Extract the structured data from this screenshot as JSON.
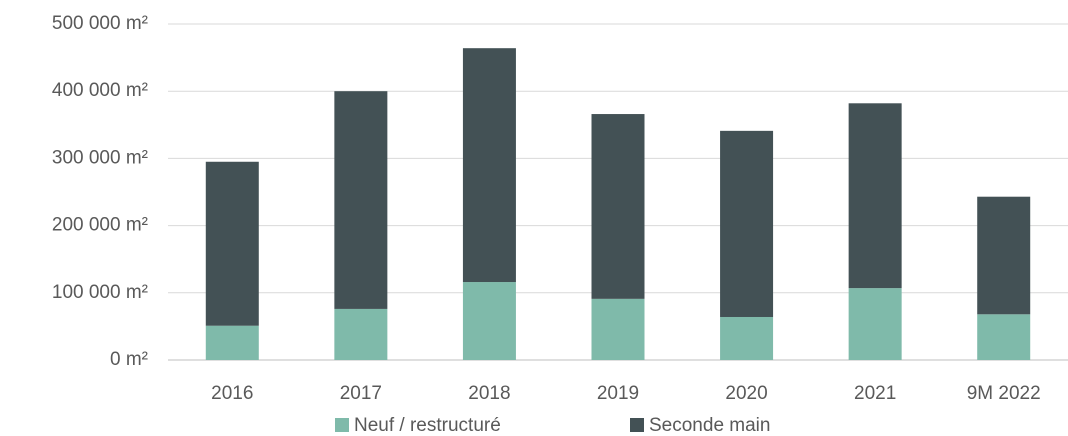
{
  "chart_data": {
    "type": "stacked_bar",
    "categories": [
      "2016",
      "2017",
      "2018",
      "2019",
      "2020",
      "2021",
      "9M 2022"
    ],
    "series": [
      {
        "name": "Neuf / restructuré",
        "color": "#7fbaaa",
        "values": [
          51000,
          76000,
          116000,
          91000,
          64000,
          107000,
          68000
        ]
      },
      {
        "name": "Seconde main",
        "color": "#435155",
        "values": [
          244000,
          324000,
          348000,
          275000,
          277000,
          275000,
          175000
        ]
      }
    ],
    "ylim": [
      0,
      500000
    ],
    "yticks": [
      {
        "value": 0,
        "label": "0 m²"
      },
      {
        "value": 100000,
        "label": "100 000 m²"
      },
      {
        "value": 200000,
        "label": "200 000 m²"
      },
      {
        "value": 300000,
        "label": "300 000 m²"
      },
      {
        "value": 400000,
        "label": "400 000 m²"
      },
      {
        "value": 500000,
        "label": "500 000 m²"
      }
    ],
    "grid": true,
    "legend": "bottom"
  }
}
